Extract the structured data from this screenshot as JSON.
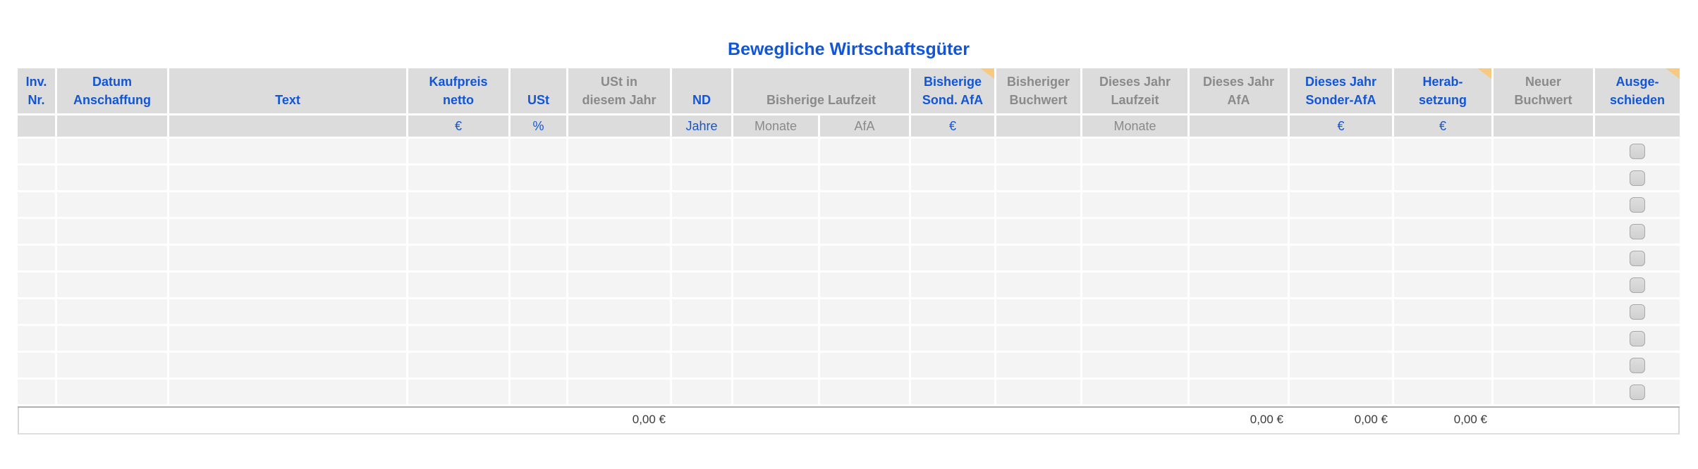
{
  "title": "Bewegliche Wirtschaftsgüter",
  "colors": {
    "accent_blue": "#1256d6",
    "header_gray_text": "#8a8a8a",
    "header_background": "#dcdcdc",
    "row_background": "#f4f4f4",
    "comment_indicator_orange": "#f6ca80",
    "total_text": "#3b3b3b"
  },
  "header_columns": [
    {
      "id": "inv-nr",
      "lines": [
        "Inv.",
        "Nr."
      ],
      "color": "blue",
      "note": false
    },
    {
      "id": "datum-anschaffung",
      "lines": [
        "Datum",
        "Anschaffung"
      ],
      "color": "blue",
      "note": false
    },
    {
      "id": "text",
      "lines": [
        "Text"
      ],
      "color": "blue",
      "note": false
    },
    {
      "id": "kaufpreis-netto",
      "lines": [
        "Kaufpreis",
        "netto"
      ],
      "color": "blue",
      "note": false
    },
    {
      "id": "ust",
      "lines": [
        "USt"
      ],
      "color": "blue",
      "note": false
    },
    {
      "id": "ust-in-diesem-jahr",
      "lines": [
        "USt in",
        "diesem Jahr"
      ],
      "color": "gray",
      "note": false
    },
    {
      "id": "nd",
      "lines": [
        "ND"
      ],
      "color": "blue",
      "note": false
    },
    {
      "id": "bisherige-laufzeit",
      "lines": [
        "Bisherige Laufzeit"
      ],
      "color": "gray",
      "note": false,
      "span": [
        "monate-bisher",
        "afa-bisher"
      ]
    },
    {
      "id": "bisherige-sond-afa",
      "lines": [
        "Bisherige",
        "Sond. AfA"
      ],
      "color": "blue",
      "note": true
    },
    {
      "id": "bisheriger-buchwert",
      "lines": [
        "Bisheriger",
        "Buchwert"
      ],
      "color": "gray",
      "note": false
    },
    {
      "id": "dieses-jahr-laufzeit",
      "lines": [
        "Dieses Jahr",
        "Laufzeit"
      ],
      "color": "gray",
      "note": false
    },
    {
      "id": "dieses-jahr-afa",
      "lines": [
        "Dieses Jahr",
        "AfA"
      ],
      "color": "gray",
      "note": false
    },
    {
      "id": "dieses-jahr-sonder-afa",
      "lines": [
        "Dieses Jahr",
        "Sonder-AfA"
      ],
      "color": "blue",
      "note": false
    },
    {
      "id": "herabsetzung",
      "lines": [
        "Herab-",
        "setzung"
      ],
      "color": "blue",
      "note": true
    },
    {
      "id": "neuer-buchwert",
      "lines": [
        "Neuer",
        "Buchwert"
      ],
      "color": "gray",
      "note": false
    },
    {
      "id": "ausgeschieden",
      "lines": [
        "Ausge-",
        "schieden"
      ],
      "color": "blue",
      "note": true
    }
  ],
  "sub_columns": [
    {
      "id": "inv-nr",
      "label": "",
      "color": "gray"
    },
    {
      "id": "datum-anschaffung",
      "label": "",
      "color": "gray"
    },
    {
      "id": "text",
      "label": "",
      "color": "gray"
    },
    {
      "id": "kaufpreis-netto",
      "label": "€",
      "color": "blue"
    },
    {
      "id": "ust",
      "label": "%",
      "color": "blue"
    },
    {
      "id": "ust-in-diesem-jahr",
      "label": "",
      "color": "gray"
    },
    {
      "id": "nd",
      "label": "Jahre",
      "color": "blue"
    },
    {
      "id": "monate-bisher",
      "label": "Monate",
      "color": "gray"
    },
    {
      "id": "afa-bisher",
      "label": "AfA",
      "color": "gray"
    },
    {
      "id": "bisherige-sond-afa",
      "label": "€",
      "color": "blue"
    },
    {
      "id": "bisheriger-buchwert",
      "label": "",
      "color": "gray"
    },
    {
      "id": "dieses-jahr-laufzeit",
      "label": "Monate",
      "color": "gray"
    },
    {
      "id": "dieses-jahr-afa",
      "label": "",
      "color": "gray"
    },
    {
      "id": "dieses-jahr-sonder-afa",
      "label": "€",
      "color": "blue"
    },
    {
      "id": "herabsetzung",
      "label": "€",
      "color": "blue"
    },
    {
      "id": "neuer-buchwert",
      "label": "",
      "color": "gray"
    },
    {
      "id": "ausgeschieden",
      "label": "",
      "color": "gray"
    }
  ],
  "row_count": 10,
  "checkbox_column": "ausgeschieden",
  "checkboxes_checked": false,
  "totals": {
    "ust-in-diesem-jahr": "0,00 €",
    "dieses-jahr-afa": "0,00 €",
    "dieses-jahr-sonder-afa": "0,00 €",
    "herabsetzung": "0,00 €"
  }
}
